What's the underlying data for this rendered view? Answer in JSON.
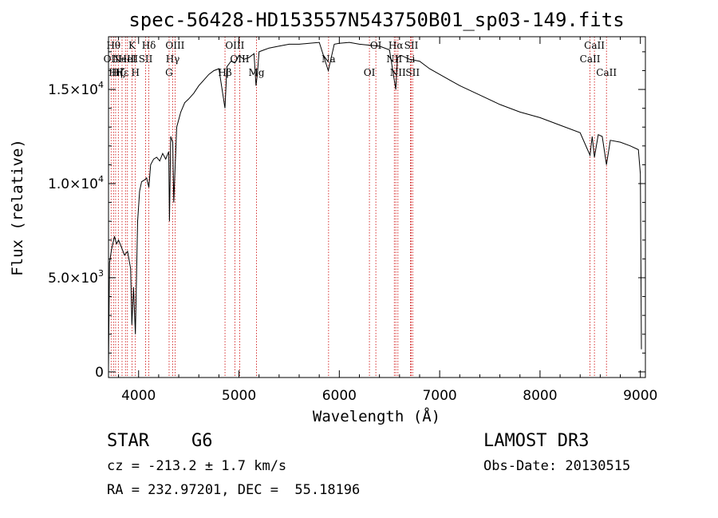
{
  "chart_data": {
    "type": "line",
    "title": "spec-56428-HD153557N543750B01_sp03-149.fits",
    "xlabel": "Wavelength (Å)",
    "ylabel": "Flux (relative)",
    "xlim": [
      3700,
      9050
    ],
    "ylim": [
      -300,
      17800
    ],
    "x_ticks": [
      4000,
      5000,
      6000,
      7000,
      8000,
      9000
    ],
    "x_tick_labels": [
      "4000",
      "5000",
      "6000",
      "7000",
      "8000",
      "9000"
    ],
    "y_ticks": [
      0,
      5000,
      10000,
      15000
    ],
    "y_tick_labels": [
      {
        "base": "0",
        "exp": ""
      },
      {
        "base": "5.0×10",
        "exp": "3"
      },
      {
        "base": "1.0×10",
        "exp": "4"
      },
      {
        "base": "1.5×10",
        "exp": "4"
      }
    ],
    "line_color": "#000000",
    "marker_color": "#cc0000",
    "series": [
      {
        "x": [
          3700,
          3710,
          3730,
          3760,
          3780,
          3800,
          3830,
          3860,
          3890,
          3920,
          3933,
          3950,
          3968,
          3990,
          4010,
          4030,
          4060,
          4080,
          4102,
          4120,
          4150,
          4180,
          4210,
          4240,
          4270,
          4300,
          4307,
          4320,
          4340,
          4350,
          4380,
          4420,
          4460,
          4500,
          4550,
          4600,
          4650,
          4700,
          4750,
          4800,
          4861,
          4880,
          4920,
          4960,
          5000,
          5050,
          5100,
          5150,
          5170,
          5183,
          5200,
          5250,
          5300,
          5400,
          5500,
          5600,
          5700,
          5800,
          5890,
          5950,
          6000,
          6100,
          6200,
          6300,
          6400,
          6500,
          6563,
          6580,
          6620,
          6700,
          6800,
          6900,
          7000,
          7100,
          7200,
          7400,
          7600,
          7800,
          8000,
          8200,
          8400,
          8498,
          8520,
          8542,
          8580,
          8620,
          8662,
          8700,
          8800,
          8900,
          8980,
          9000,
          9010
        ],
        "y": [
          200,
          5800,
          6500,
          7200,
          6800,
          7000,
          6600,
          6200,
          6400,
          5500,
          2500,
          4500,
          2000,
          8000,
          9600,
          10100,
          10200,
          10300,
          9800,
          11000,
          11300,
          11400,
          11200,
          11600,
          11300,
          11700,
          8000,
          12500,
          12200,
          9000,
          13000,
          13800,
          14300,
          14500,
          14800,
          15200,
          15500,
          15800,
          16000,
          16100,
          14000,
          16200,
          16500,
          16400,
          16800,
          16600,
          16700,
          16900,
          15200,
          15800,
          17000,
          17100,
          17200,
          17300,
          17400,
          17400,
          17450,
          17500,
          16000,
          17400,
          17450,
          17500,
          17400,
          17350,
          17300,
          17100,
          15000,
          16700,
          16800,
          16600,
          16500,
          16100,
          15800,
          15500,
          15200,
          14700,
          14200,
          13800,
          13500,
          13100,
          12700,
          11500,
          12500,
          11400,
          12600,
          12500,
          11000,
          12300,
          12200,
          12000,
          11800,
          10500,
          1200
        ]
      }
    ],
    "line_markers": [
      {
        "x": 3726,
        "label": "OII",
        "row": 1
      },
      {
        "x": 3750,
        "label": "Hθ",
        "row": 0
      },
      {
        "x": 3771,
        "label": "Hη",
        "row": 2
      },
      {
        "x": 3798,
        "label": "Hζ",
        "row": 2
      },
      {
        "x": 3835,
        "label": "Hε",
        "row": 2
      },
      {
        "x": 3869,
        "label": "NeIII",
        "row": 1
      },
      {
        "x": 3889,
        "label": "HeI",
        "row": 1
      },
      {
        "x": 3934,
        "label": "K",
        "row": 0
      },
      {
        "x": 3968,
        "label": "H",
        "row": 2
      },
      {
        "x": 4070,
        "label": "SII",
        "row": 1
      },
      {
        "x": 4102,
        "label": "Hδ",
        "row": 0
      },
      {
        "x": 4304,
        "label": "G",
        "row": 2
      },
      {
        "x": 4340,
        "label": "Hγ",
        "row": 1
      },
      {
        "x": 4363,
        "label": "OIII",
        "row": 0
      },
      {
        "x": 4861,
        "label": "Hβ",
        "row": 2
      },
      {
        "x": 4959,
        "label": "OIII",
        "row": 0
      },
      {
        "x": 5007,
        "label": "OIII",
        "row": 1
      },
      {
        "x": 5175,
        "label": "Mg",
        "row": 2
      },
      {
        "x": 5893,
        "label": "Na",
        "row": 1
      },
      {
        "x": 6300,
        "label": "OI",
        "row": 2
      },
      {
        "x": 6364,
        "label": "OI",
        "row": 0
      },
      {
        "x": 6548,
        "label": "NII",
        "row": 1
      },
      {
        "x": 6563,
        "label": "Hα",
        "row": 0
      },
      {
        "x": 6584,
        "label": "NII",
        "row": 2
      },
      {
        "x": 6708,
        "label": "Li",
        "row": 1
      },
      {
        "x": 6717,
        "label": "SII",
        "row": 0
      },
      {
        "x": 6731,
        "label": "SII",
        "row": 2
      },
      {
        "x": 8498,
        "label": "CaII",
        "row": 1
      },
      {
        "x": 8542,
        "label": "CaII",
        "row": 0
      },
      {
        "x": 8662,
        "label": "CaII",
        "row": 2
      }
    ]
  },
  "info": {
    "object_type": "STAR",
    "subclass": "G6",
    "survey": "LAMOST DR3",
    "cz": "cz = -213.2 ± 1.7 km/s",
    "obs_date": "Obs-Date: 20130515",
    "coords": "RA = 232.97201, DEC =  55.18196"
  }
}
